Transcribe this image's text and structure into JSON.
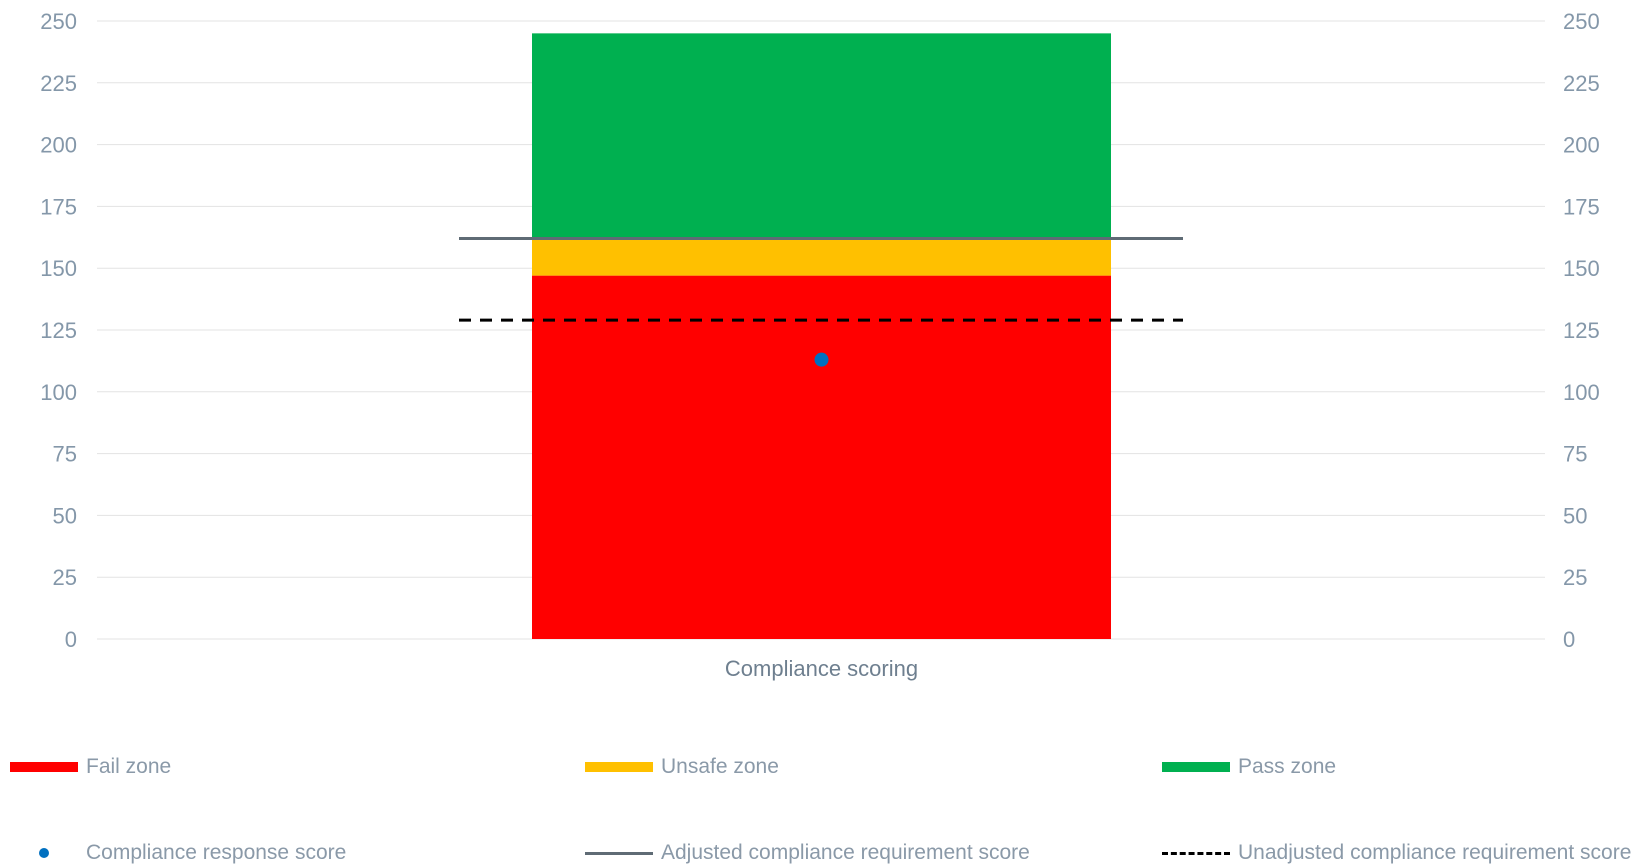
{
  "chart_data": {
    "type": "bar",
    "categories": [
      "Compliance scoring"
    ],
    "stacked_series": [
      {
        "name": "Fail zone",
        "value": 147,
        "color": "#ff0000"
      },
      {
        "name": "Unsafe zone",
        "value": 15,
        "color": "#ffc000"
      },
      {
        "name": "Pass zone",
        "value": 83,
        "color": "#00b050"
      }
    ],
    "points": [
      {
        "name": "Compliance response score",
        "value": 113,
        "color": "#0070c0"
      }
    ],
    "reference_lines": [
      {
        "name": "Adjusted compliance requirement score",
        "value": 162,
        "color": "#5f6b75",
        "style": "solid"
      },
      {
        "name": "Unadjusted compliance requirement score",
        "value": 129,
        "color": "#000000",
        "style": "dashed"
      }
    ],
    "ylim": [
      0,
      250
    ],
    "yticks": [
      "0",
      "25",
      "50",
      "75",
      "100",
      "125",
      "150",
      "175",
      "200",
      "225",
      "250"
    ],
    "secondary_yticks": [
      "0",
      "25",
      "50",
      "75",
      "100",
      "125",
      "150",
      "175",
      "200",
      "225",
      "250"
    ],
    "grid": true,
    "legend_position": "bottom"
  },
  "legend": {
    "fail": "Fail zone",
    "unsafe": "Unsafe zone",
    "pass": "Pass zone",
    "response": "Compliance response score",
    "adjusted": "Adjusted compliance requirement score",
    "unadjusted": "Unadjusted compliance requirement score"
  }
}
